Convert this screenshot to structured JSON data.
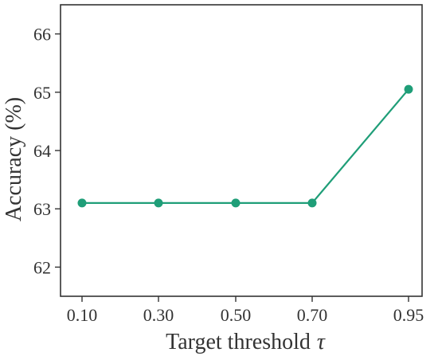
{
  "chart_data": {
    "type": "line",
    "title": "",
    "xlabel": "Target threshold",
    "xlabel_symbol": "τ",
    "ylabel": "Accuracy (%)",
    "categories": [
      "0.10",
      "0.30",
      "0.50",
      "0.70",
      "0.95"
    ],
    "x": [
      0.1,
      0.3,
      0.5,
      0.7,
      0.95
    ],
    "y_ticks": [
      "62",
      "63",
      "64",
      "65",
      "66"
    ],
    "ylim": [
      61.5,
      66.5
    ],
    "grid": false,
    "legend": "none",
    "series": [
      {
        "values": [
          63.1,
          63.1,
          63.1,
          63.1,
          65.05
        ],
        "color": "#1f9e78"
      }
    ]
  }
}
